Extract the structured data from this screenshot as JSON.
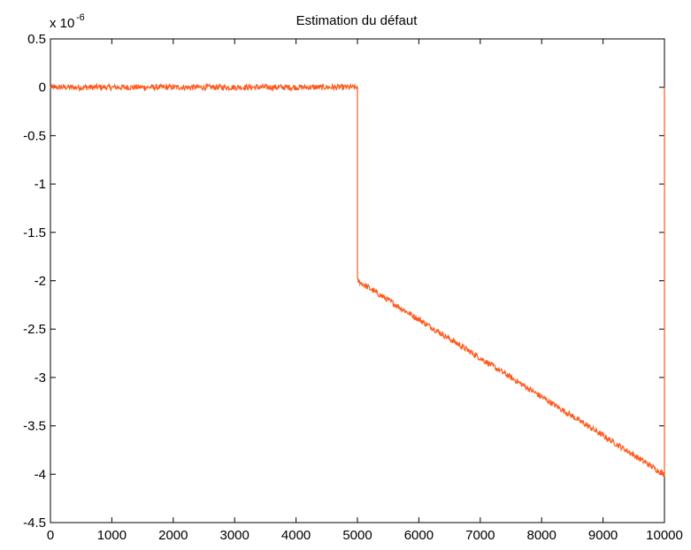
{
  "chart_data": {
    "type": "line",
    "title": "Estimation du défaut",
    "xlabel": "",
    "ylabel": "",
    "exponent_base": "x 10",
    "exponent_power": "-6",
    "xlim": [
      0,
      10000
    ],
    "ylim": [
      -4.5,
      0.5
    ],
    "xticks": [
      0,
      1000,
      2000,
      3000,
      4000,
      5000,
      6000,
      7000,
      8000,
      9000,
      10000
    ],
    "xtick_labels": [
      "0",
      "1000",
      "2000",
      "3000",
      "4000",
      "5000",
      "6000",
      "7000",
      "8000",
      "9000",
      "10000"
    ],
    "yticks": [
      0.5,
      0,
      -0.5,
      -1,
      -1.5,
      -2,
      -2.5,
      -3,
      -3.5,
      -4,
      -4.5
    ],
    "ytick_labels": [
      "0.5",
      "0",
      "-0.5",
      "-1",
      "-1.5",
      "-2",
      "-2.5",
      "-3",
      "-3.5",
      "-4",
      "-4.5"
    ],
    "grid": false,
    "line_color": "#ff5a1e",
    "series": [
      {
        "x": [
          0,
          1000,
          2000,
          3000,
          4000,
          4990,
          5000,
          5000,
          6000,
          7000,
          8000,
          9000,
          9990,
          10000,
          10000,
          10000
        ],
        "y": [
          0,
          0,
          0,
          0,
          0,
          0,
          0,
          -2,
          -2.4,
          -2.8,
          -3.2,
          -3.6,
          -4,
          -4,
          -2,
          0
        ],
        "noise_amplitude": 0.03
      }
    ]
  }
}
